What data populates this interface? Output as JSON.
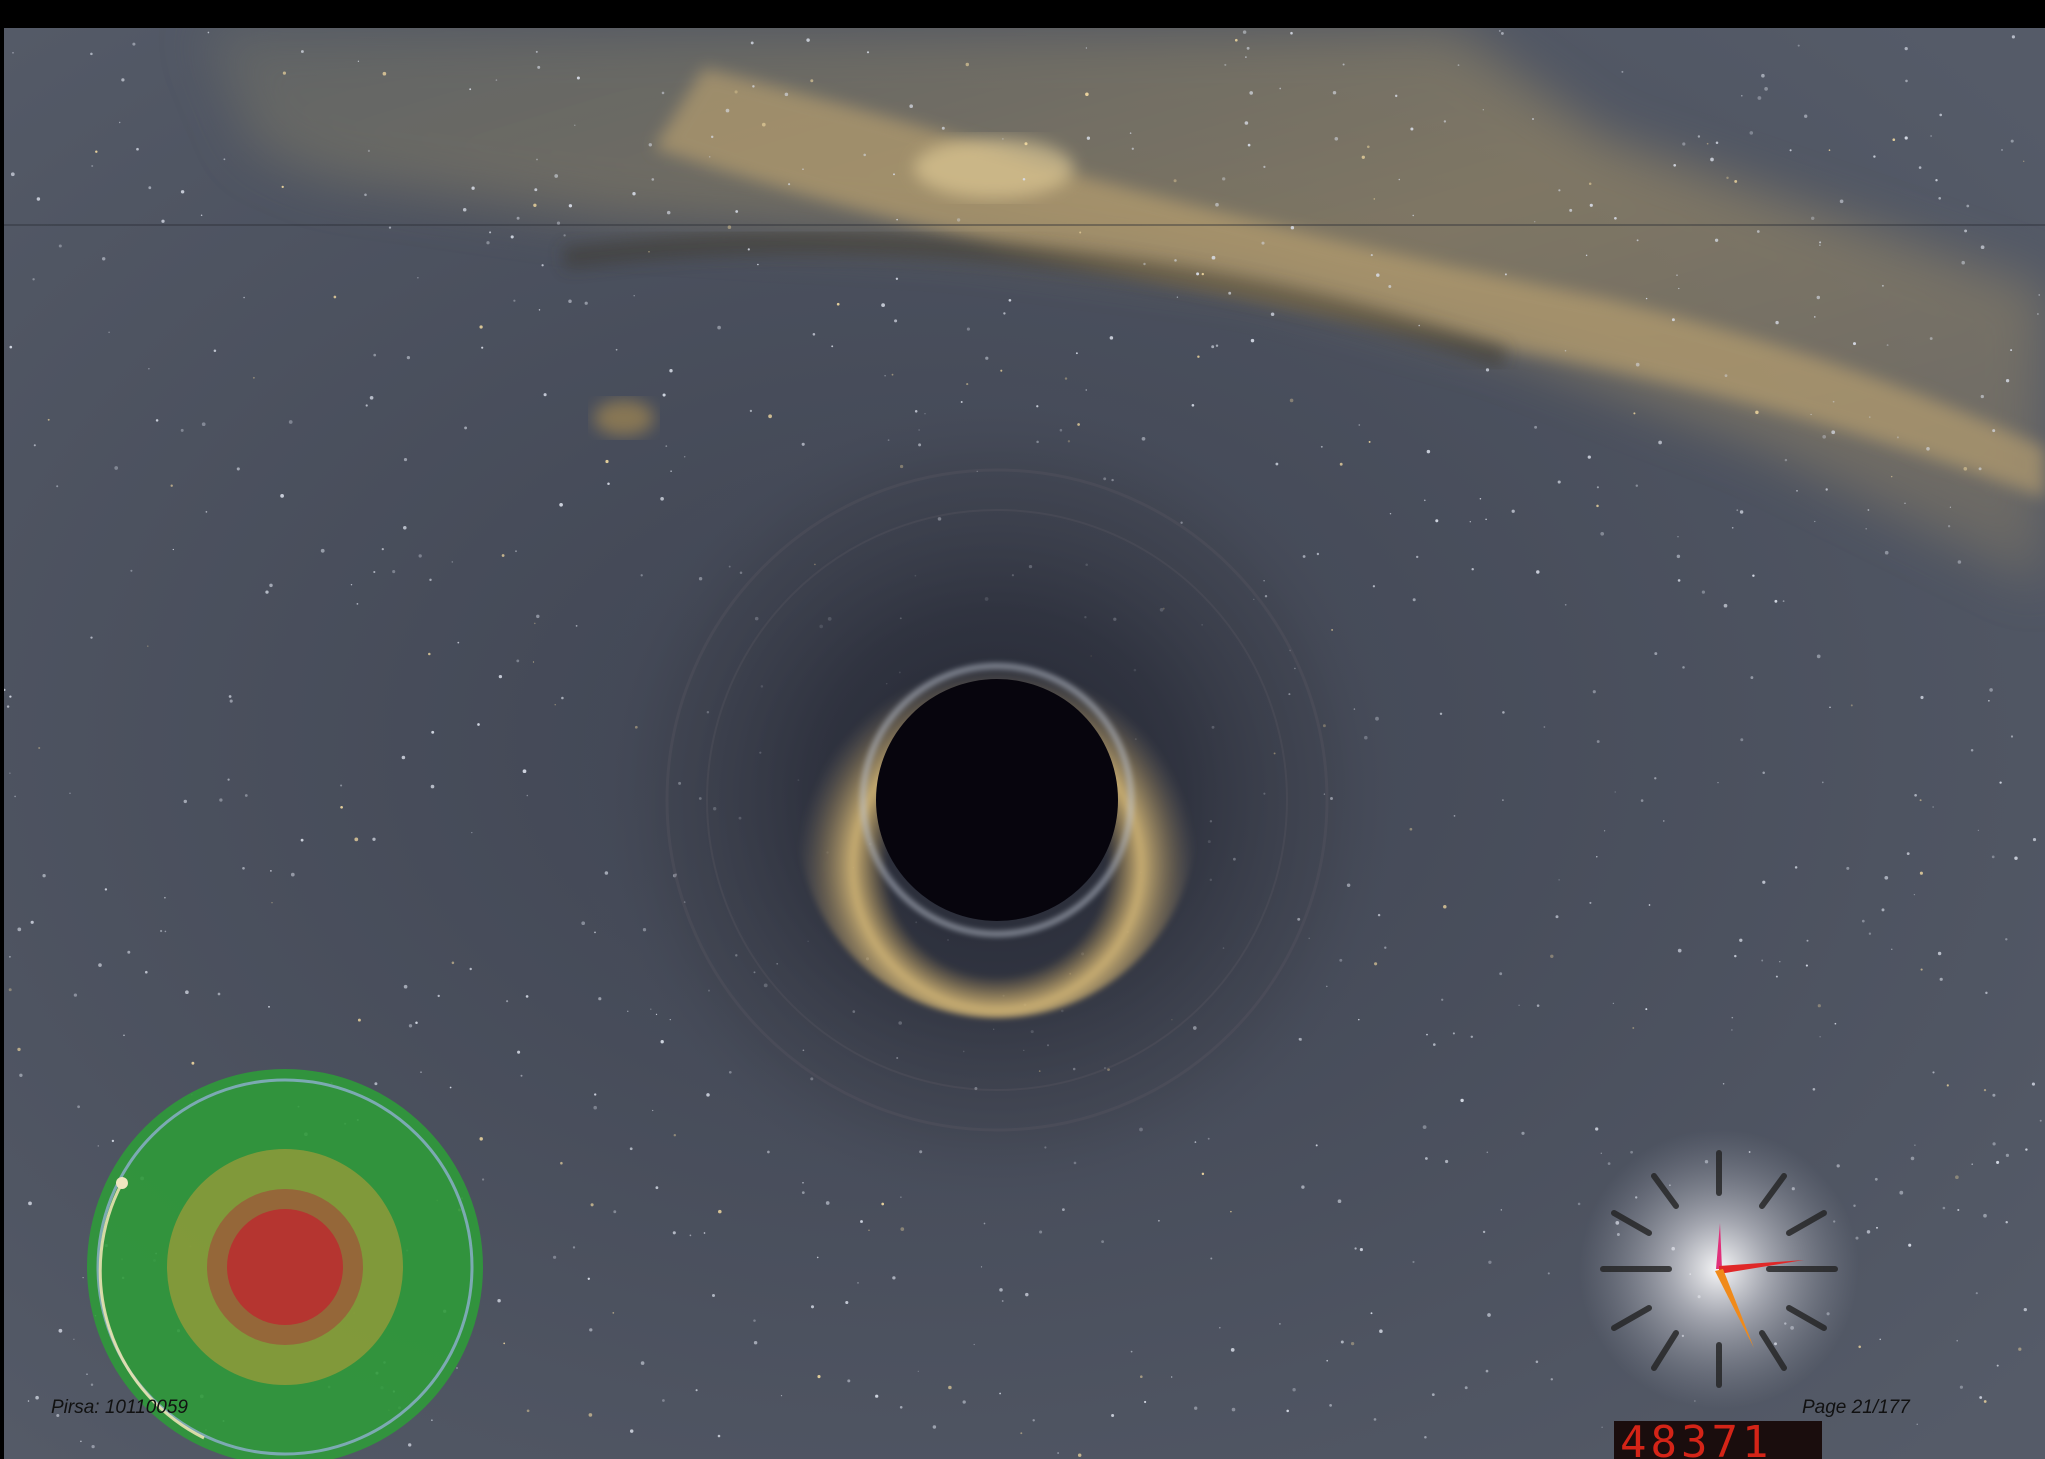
{
  "footer": {
    "pirsa_label": "Pirsa: 10110059",
    "page_label": "Page 21/177"
  },
  "hud": {
    "counter_value": "48371"
  },
  "scene": {
    "subjects": [
      "black-hole",
      "milky-way",
      "star-field",
      "radar-gauge",
      "clock-gauge"
    ],
    "colors": {
      "sky": "#4a5060",
      "horizon": "#07050d",
      "ring": "#d8b060",
      "radar_outer": "#2f9a3a",
      "radar_mid": "#8a9a3a",
      "radar_core": "#b83030",
      "counter": "#d42417"
    }
  }
}
